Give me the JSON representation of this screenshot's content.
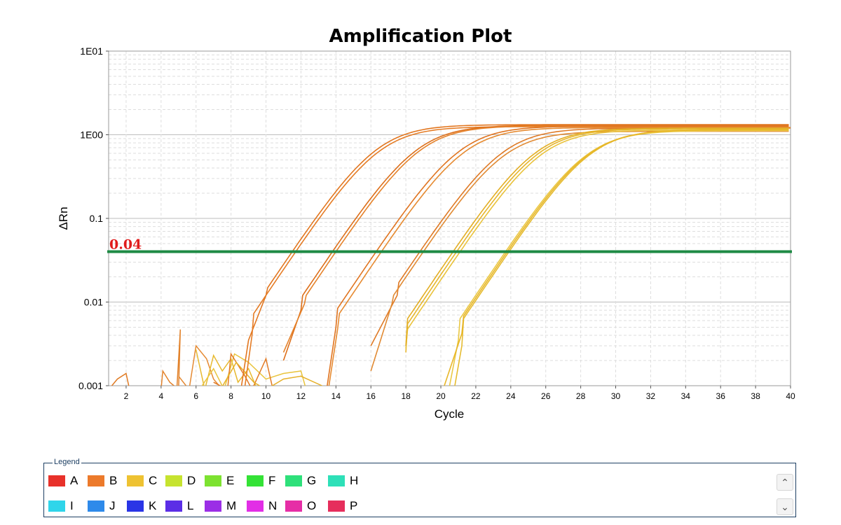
{
  "chart_data": {
    "type": "line",
    "title": "Amplification Plot",
    "xlabel": "Cycle",
    "ylabel": "ΔRn",
    "y_scale": "log",
    "xlim": [
      1,
      40
    ],
    "ylim": [
      0.001,
      10
    ],
    "x_ticks": [
      2,
      4,
      6,
      8,
      10,
      12,
      14,
      16,
      18,
      20,
      22,
      24,
      26,
      28,
      30,
      32,
      34,
      36,
      38,
      40
    ],
    "y_ticks": [
      {
        "value": 10,
        "label": "1E01"
      },
      {
        "value": 1,
        "label": "1E00"
      },
      {
        "value": 0.1,
        "label": "0.1"
      },
      {
        "value": 0.01,
        "label": "0.01"
      },
      {
        "value": 0.001,
        "label": "0.001"
      }
    ],
    "grid": true,
    "threshold": {
      "value": 0.04,
      "label": "0.04",
      "color": "#1e8a44"
    },
    "series": [
      {
        "color": "#e2761f",
        "plateau": 1.32,
        "ct": 11.5,
        "noise": [
          [
            8.6,
            0.001
          ],
          [
            9,
            0.0035
          ],
          [
            10,
            0.012
          ]
        ]
      },
      {
        "color": "#e57c25",
        "plateau": 1.25,
        "ct": 11.7,
        "noise": [
          [
            8.8,
            0.001
          ],
          [
            9.2,
            0.004
          ]
        ]
      },
      {
        "color": "#dd6f1a",
        "plateau": 1.3,
        "ct": 13.8,
        "noise": [
          [
            11,
            0.002
          ],
          [
            12,
            0.008
          ]
        ]
      },
      {
        "color": "#e5822a",
        "plateau": 1.28,
        "ct": 14.0,
        "noise": [
          [
            11,
            0.0025
          ],
          [
            12.2,
            0.0095
          ]
        ]
      },
      {
        "color": "#e07420",
        "plateau": 1.27,
        "ct": 16.3,
        "noise": [
          [
            13.5,
            0.001
          ],
          [
            14,
            0.005
          ]
        ]
      },
      {
        "color": "#e68a30",
        "plateau": 1.22,
        "ct": 16.6,
        "noise": [
          [
            13.6,
            0.001
          ],
          [
            14.1,
            0.0048
          ]
        ]
      },
      {
        "color": "#df7a26",
        "plateau": 1.2,
        "ct": 18.8,
        "noise": [
          [
            16,
            0.003
          ],
          [
            17.5,
            0.012
          ]
        ]
      },
      {
        "color": "#e18a33",
        "plateau": 1.1,
        "ct": 19.0,
        "noise": [
          [
            16,
            0.0015
          ],
          [
            17.2,
            0.0095
          ]
        ]
      },
      {
        "color": "#e6b62c",
        "plateau": 1.18,
        "ct": 20.9,
        "noise": [
          [
            18,
            0.0025
          ]
        ]
      },
      {
        "color": "#e9c23b",
        "plateau": 1.14,
        "ct": 21.1,
        "noise": [
          [
            18,
            0.0028
          ]
        ]
      },
      {
        "color": "#e3ae24",
        "plateau": 1.2,
        "ct": 20.7,
        "noise": [
          [
            18,
            0.003
          ]
        ]
      },
      {
        "color": "#eac844",
        "plateau": 1.12,
        "ct": 23.7,
        "noise": [
          [
            20.5,
            0.001
          ],
          [
            21,
            0.0035
          ]
        ]
      },
      {
        "color": "#e5bb30",
        "plateau": 1.16,
        "ct": 23.9,
        "noise": [
          [
            20.8,
            0.001
          ],
          [
            21.2,
            0.003
          ]
        ]
      },
      {
        "color": "#e8b628",
        "plateau": 1.15,
        "ct": 23.8,
        "noise": [
          [
            20.2,
            0.001
          ],
          [
            21.2,
            0.0042
          ]
        ]
      }
    ],
    "background_noise": [
      {
        "color": "#e07a22",
        "points": [
          [
            1,
            0.0009
          ],
          [
            1.5,
            0.0012
          ],
          [
            2,
            0.0014
          ],
          [
            2.2,
            0.0009
          ]
        ]
      },
      {
        "color": "#e2822b",
        "points": [
          [
            4,
            0.0009
          ],
          [
            4.1,
            0.0015
          ],
          [
            4.5,
            0.0011
          ],
          [
            5,
            0.0009
          ],
          [
            5.1,
            0.0047
          ],
          [
            4.9,
            0.0009
          ]
        ]
      },
      {
        "color": "#e58a33",
        "points": [
          [
            5,
            0.0013
          ],
          [
            5.6,
            0.0009
          ],
          [
            6,
            0.003
          ],
          [
            6.6,
            0.0021
          ],
          [
            7,
            0.0012
          ],
          [
            7.5,
            0.0009
          ]
        ]
      },
      {
        "color": "#e7b92f",
        "points": [
          [
            6,
            0.0027
          ],
          [
            6.5,
            0.0009
          ],
          [
            7,
            0.0023
          ],
          [
            7.5,
            0.0015
          ],
          [
            8,
            0.0021
          ],
          [
            8.4,
            0.0011
          ],
          [
            9,
            0.0016
          ],
          [
            9.5,
            0.0009
          ]
        ]
      },
      {
        "color": "#e9c43d",
        "points": [
          [
            6.2,
            0.0009
          ],
          [
            7,
            0.0016
          ],
          [
            7.6,
            0.0009
          ],
          [
            8.2,
            0.0024
          ],
          [
            9,
            0.0019
          ],
          [
            10,
            0.0012
          ],
          [
            11,
            0.0014
          ],
          [
            12,
            0.0015
          ],
          [
            12.3,
            0.0009
          ]
        ]
      },
      {
        "color": "#e27a24",
        "points": [
          [
            7,
            0.0011
          ],
          [
            7.8,
            0.0009
          ],
          [
            8,
            0.0024
          ],
          [
            8.8,
            0.0013
          ],
          [
            9.2,
            0.0009
          ],
          [
            10,
            0.0021
          ],
          [
            10.4,
            0.0009
          ]
        ]
      },
      {
        "color": "#e6b12a",
        "points": [
          [
            7.4,
            0.0009
          ],
          [
            8.3,
            0.0019
          ],
          [
            9.3,
            0.0011
          ],
          [
            10,
            0.0009
          ],
          [
            11,
            0.0012
          ],
          [
            12,
            0.0013
          ],
          [
            13.2,
            0.001
          ],
          [
            13.6,
            0.0009
          ]
        ]
      }
    ]
  },
  "legend": {
    "title": "Legend",
    "items": [
      {
        "label": "A",
        "color": "#e8312a"
      },
      {
        "label": "B",
        "color": "#ec7a2b"
      },
      {
        "label": "C",
        "color": "#eec232"
      },
      {
        "label": "D",
        "color": "#c6e32f"
      },
      {
        "label": "E",
        "color": "#7de230"
      },
      {
        "label": "F",
        "color": "#34e236"
      },
      {
        "label": "G",
        "color": "#2ee07a"
      },
      {
        "label": "H",
        "color": "#2ee0b8"
      },
      {
        "label": "I",
        "color": "#2fd5ea"
      },
      {
        "label": "J",
        "color": "#2e8aea"
      },
      {
        "label": "K",
        "color": "#2a35e6"
      },
      {
        "label": "L",
        "color": "#5b2ee6"
      },
      {
        "label": "M",
        "color": "#9b2ee6"
      },
      {
        "label": "N",
        "color": "#e22ee6"
      },
      {
        "label": "O",
        "color": "#e62ea6"
      },
      {
        "label": "P",
        "color": "#e62e5c"
      }
    ],
    "scroll_up_icon": "chevron-up-icon",
    "scroll_down_icon": "chevron-down-icon"
  }
}
